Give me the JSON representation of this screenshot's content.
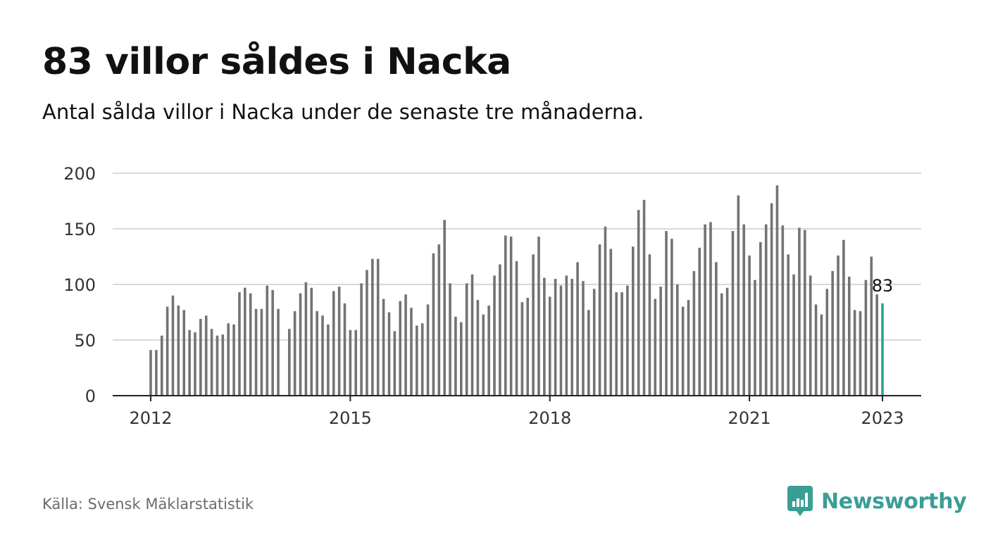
{
  "header": {
    "title": "83 villor såldes i Nacka",
    "subtitle": "Antal sålda villor i Nacka under de senaste tre månaderna."
  },
  "footer": {
    "source": "Källa: Svensk Mäklarstatistik",
    "brand": "Newsworthy"
  },
  "colors": {
    "bar": "#737373",
    "highlight": "#2aa39a",
    "grid": "#d9d9d9",
    "axis": "#222222",
    "brand": "#3a9e95"
  },
  "icons": {
    "brand_logo": "bar-chart-speech-bubble-icon"
  },
  "chart_data": {
    "type": "bar",
    "title": "83 villor såldes i Nacka",
    "subtitle": "Antal sålda villor i Nacka under de senaste tre månaderna.",
    "xlabel": "",
    "ylabel": "",
    "ylim": [
      0,
      200
    ],
    "yticks": [
      0,
      50,
      100,
      150,
      200
    ],
    "xticks": [
      "2012",
      "2015",
      "2018",
      "2021",
      "2023"
    ],
    "x_start": "2012-01",
    "x_end": "2023-01",
    "grid": true,
    "highlight_label": "83",
    "values": [
      41,
      41,
      54,
      80,
      90,
      81,
      77,
      59,
      57,
      69,
      72,
      60,
      54,
      55,
      65,
      64,
      93,
      97,
      92,
      78,
      78,
      99,
      95,
      78,
      null,
      60,
      76,
      92,
      102,
      97,
      76,
      72,
      64,
      94,
      98,
      83,
      59,
      59,
      101,
      113,
      123,
      123,
      87,
      75,
      58,
      85,
      91,
      79,
      63,
      65,
      82,
      128,
      136,
      158,
      101,
      71,
      66,
      101,
      109,
      86,
      73,
      81,
      108,
      118,
      144,
      143,
      121,
      84,
      88,
      127,
      143,
      106,
      89,
      105,
      99,
      108,
      105,
      120,
      103,
      77,
      96,
      136,
      152,
      132,
      93,
      93,
      99,
      134,
      167,
      176,
      127,
      87,
      98,
      148,
      141,
      100,
      80,
      86,
      112,
      133,
      154,
      156,
      120,
      92,
      97,
      148,
      180,
      154,
      126,
      104,
      138,
      154,
      173,
      189,
      153,
      127,
      109,
      151,
      149,
      108,
      82,
      73,
      96,
      112,
      126,
      140,
      107,
      77,
      76,
      104,
      125,
      91,
      83
    ]
  }
}
